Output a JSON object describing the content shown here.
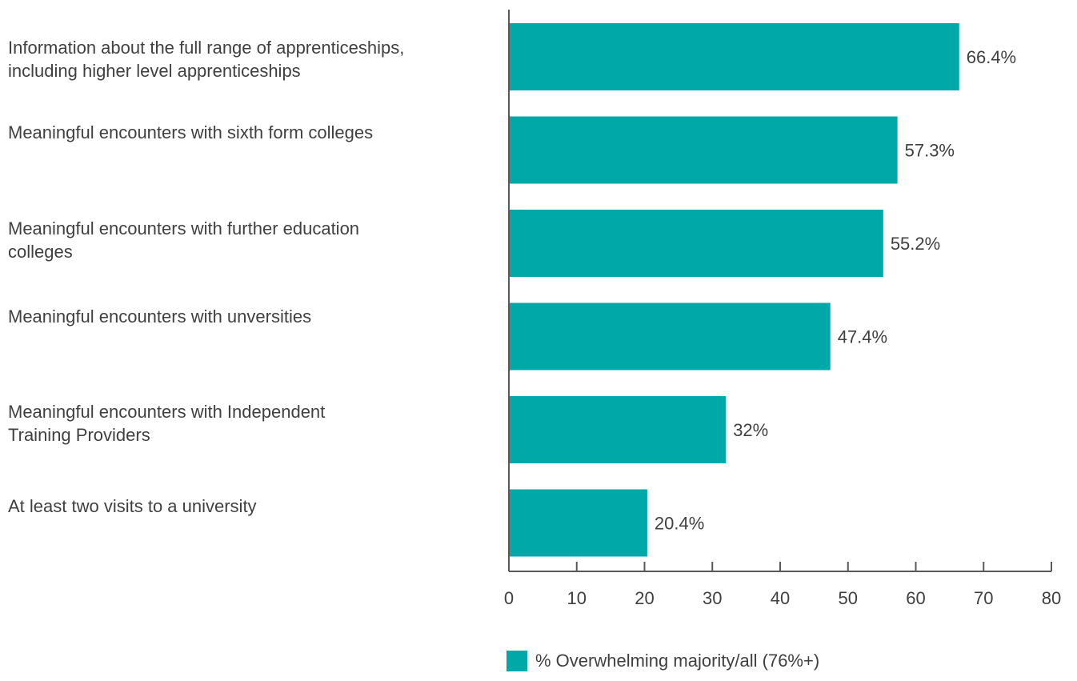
{
  "chart_data": {
    "type": "bar",
    "orientation": "horizontal",
    "categories": [
      "Information about the full range of apprenticeships, including higher level apprenticeships",
      "Meaningful encounters with sixth form colleges",
      "Meaningful encounters with further education colleges",
      "Meaningful encounters with unversities",
      "Meaningful encounters with Independent Training Providers",
      "At least two visits to a university"
    ],
    "series": [
      {
        "name": "% Overwhelming majority/all (76%+)",
        "values": [
          66.4,
          57.3,
          55.2,
          47.4,
          32,
          20.4
        ],
        "data_labels": [
          "66.4%",
          "57.3%",
          "55.2%",
          "47.4%",
          "32%",
          "20.4%"
        ],
        "color": "#00A8A8"
      }
    ],
    "xlim": [
      0,
      80
    ],
    "x_ticks": [
      0,
      10,
      20,
      30,
      40,
      50,
      60,
      70,
      80
    ],
    "title": "",
    "xlabel": "",
    "ylabel": "",
    "grid": false,
    "legend_position": "bottom"
  }
}
